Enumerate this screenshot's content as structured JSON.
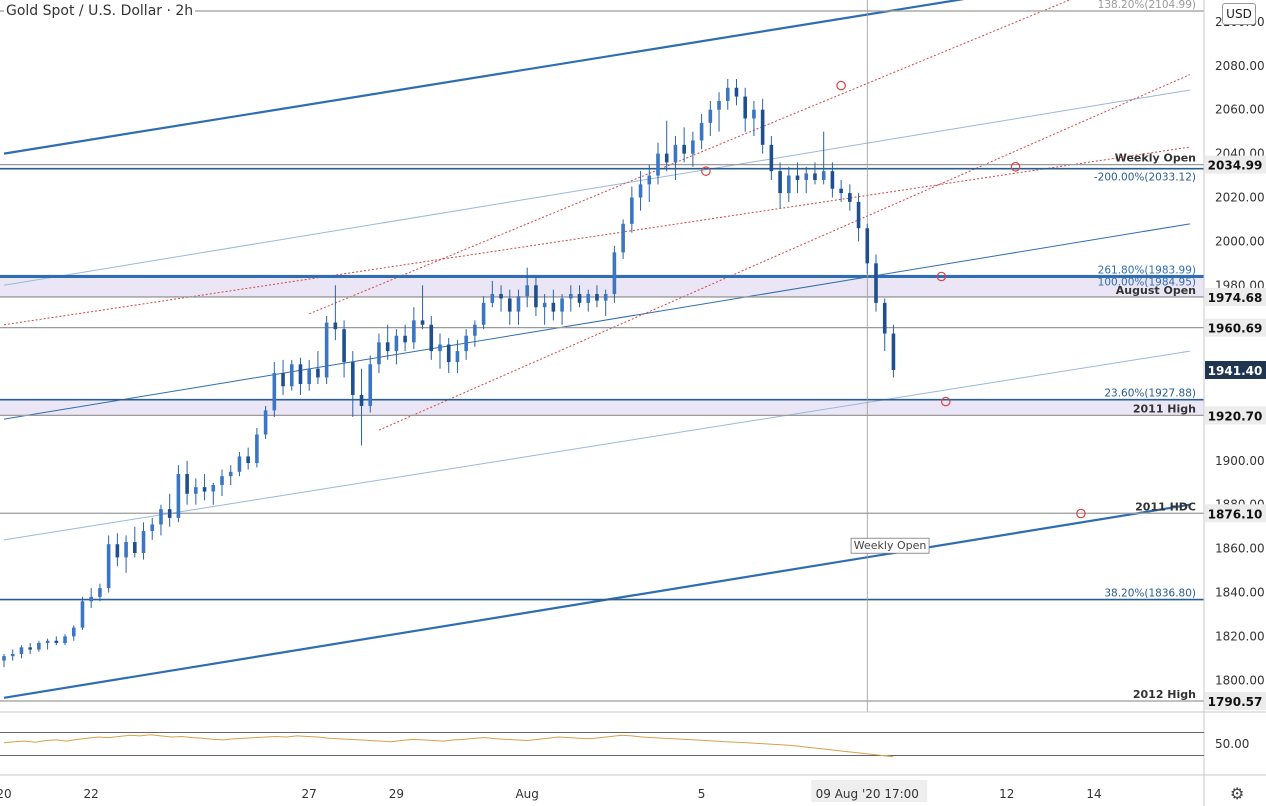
{
  "header": {
    "title": "Gold Spot / U.S. Dollar",
    "interval": "2h"
  },
  "currency_button": "USD",
  "settings_icon": "gear-icon",
  "colors": {
    "candle": "#2962a8",
    "channel": "#2f6db2",
    "light_channel": "#9ab8dc",
    "dotted": "#d64545",
    "level": "#2a5d8f",
    "grey_level": "#9a9a9a",
    "zone": "#e4def2",
    "rsi": "#d9a04a"
  },
  "chart_data": {
    "type": "candlestick",
    "symbol": "Gold Spot / U.S. Dollar",
    "interval": "2h",
    "currency": "USD",
    "ylim": [
      1786,
      2110
    ],
    "price_ticks": [
      1800,
      1820,
      1840,
      1860,
      1880,
      1900,
      1920,
      1940,
      1960,
      1980,
      2000,
      2020,
      2040,
      2060,
      2080,
      2100
    ],
    "x_ticks": [
      {
        "label": "20",
        "t": 0
      },
      {
        "label": "22",
        "t": 2
      },
      {
        "label": "27",
        "t": 7
      },
      {
        "label": "29",
        "t": 9
      },
      {
        "label": "Aug",
        "t": 12
      },
      {
        "label": "5",
        "t": 16
      },
      {
        "label": "09 Aug '20   17:00",
        "t": 19.8
      },
      {
        "label": "12",
        "t": 23
      },
      {
        "label": "14",
        "t": 25
      }
    ],
    "price_badges": [
      {
        "label": "2034.99",
        "value": 2034.99,
        "style": "grey"
      },
      {
        "label": "1974.68",
        "value": 1974.68,
        "style": "grey"
      },
      {
        "label": "1960.69",
        "value": 1960.69,
        "style": "grey"
      },
      {
        "label": "1941.40",
        "value": 1941.4,
        "style": "dark"
      },
      {
        "label": "1920.70",
        "value": 1920.7,
        "style": "grey"
      },
      {
        "label": "1876.10",
        "value": 1876.1,
        "style": "grey"
      },
      {
        "label": "1790.57",
        "value": 1790.57,
        "style": "grey"
      }
    ],
    "levels": [
      {
        "label": "138.20%(2104.99)",
        "value": 2104.99,
        "color": "grey"
      },
      {
        "label": "Weekly Open",
        "value": 2034.99,
        "color": "grey",
        "bold": true
      },
      {
        "label": "-200.00%(2033.12)",
        "value": 2033.12,
        "color": "teal"
      },
      {
        "label": "261.80%(1983.99)",
        "value": 1983.99,
        "color": "blue"
      },
      {
        "label": "100.00%(1984.95)",
        "value": 1984.95,
        "color": "blue"
      },
      {
        "label": "August Open",
        "value": 1974.68,
        "color": "grey",
        "bold": true
      },
      {
        "label": "",
        "value": 1960.69,
        "color": "grey"
      },
      {
        "label": "23.60%(1927.88)",
        "value": 1927.88,
        "color": "teal"
      },
      {
        "label": "2011 High",
        "value": 1920.7,
        "color": "grey",
        "bold": true
      },
      {
        "label": "2011 HDC",
        "value": 1876.1,
        "color": "grey",
        "bold": true
      },
      {
        "label": "38.20%(1836.80)",
        "value": 1836.8,
        "color": "teal"
      },
      {
        "label": "2012 High",
        "value": 1790.57,
        "color": "grey",
        "bold": true
      }
    ],
    "zones": [
      {
        "from": 1974.68,
        "to": 1984.95
      },
      {
        "from": 1920.7,
        "to": 1927.88
      }
    ],
    "trendlines": [
      {
        "kind": "channel",
        "from": {
          "t": 0,
          "p": 2040
        },
        "to": {
          "t": 22.5,
          "p": 2112
        }
      },
      {
        "kind": "channel",
        "from": {
          "t": 0,
          "p": 1792
        },
        "to": {
          "t": 27.2,
          "p": 1880
        }
      },
      {
        "kind": "mid",
        "from": {
          "t": 0,
          "p": 1919
        },
        "to": {
          "t": 27.2,
          "p": 2008
        }
      },
      {
        "kind": "light",
        "from": {
          "t": 0,
          "p": 1980
        },
        "to": {
          "t": 27.2,
          "p": 2069
        }
      },
      {
        "kind": "light",
        "from": {
          "t": 0,
          "p": 1864
        },
        "to": {
          "t": 27.2,
          "p": 1950
        }
      },
      {
        "kind": "dotted",
        "from": {
          "t": 0,
          "p": 1962
        },
        "to": {
          "t": 27.2,
          "p": 2043
        }
      },
      {
        "kind": "dotted",
        "from": {
          "t": 7,
          "p": 1967
        },
        "to": {
          "t": 24.8,
          "p": 2113
        }
      },
      {
        "kind": "dotted",
        "from": {
          "t": 8.6,
          "p": 1914
        },
        "to": {
          "t": 27.2,
          "p": 2076
        }
      }
    ],
    "markers": [
      {
        "t": 16.1,
        "p": 2032
      },
      {
        "t": 19.2,
        "p": 2071
      },
      {
        "t": 23.2,
        "p": 2034
      },
      {
        "t": 21.5,
        "p": 1984
      },
      {
        "t": 21.6,
        "p": 1927
      },
      {
        "t": 24.7,
        "p": 1876
      }
    ],
    "vertical_line_t": 19.8,
    "annotation": {
      "text": "Weekly Open",
      "t": 20.3,
      "p": 1862
    },
    "candles": [
      [
        0.0,
        1809,
        1812,
        1806,
        1811
      ],
      [
        0.2,
        1811,
        1814,
        1809,
        1812
      ],
      [
        0.4,
        1812,
        1816,
        1810,
        1815
      ],
      [
        0.6,
        1815,
        1817,
        1812,
        1814
      ],
      [
        0.8,
        1814,
        1818,
        1813,
        1817
      ],
      [
        1.0,
        1817,
        1819,
        1814,
        1818
      ],
      [
        1.2,
        1818,
        1820,
        1816,
        1817
      ],
      [
        1.4,
        1817,
        1821,
        1816,
        1820
      ],
      [
        1.6,
        1820,
        1825,
        1818,
        1824
      ],
      [
        1.8,
        1824,
        1838,
        1823,
        1836
      ],
      [
        2.0,
        1836,
        1842,
        1833,
        1838
      ],
      [
        2.2,
        1838,
        1844,
        1836,
        1842
      ],
      [
        2.4,
        1842,
        1866,
        1840,
        1862
      ],
      [
        2.6,
        1862,
        1867,
        1852,
        1856
      ],
      [
        2.8,
        1856,
        1866,
        1849,
        1863
      ],
      [
        3.0,
        1863,
        1870,
        1856,
        1858
      ],
      [
        3.2,
        1858,
        1872,
        1855,
        1868
      ],
      [
        3.4,
        1868,
        1874,
        1864,
        1871
      ],
      [
        3.6,
        1871,
        1880,
        1866,
        1878
      ],
      [
        3.8,
        1878,
        1885,
        1870,
        1874
      ],
      [
        4.0,
        1874,
        1898,
        1872,
        1894
      ],
      [
        4.2,
        1894,
        1900,
        1880,
        1885
      ],
      [
        4.4,
        1885,
        1892,
        1880,
        1888
      ],
      [
        4.6,
        1888,
        1894,
        1882,
        1886
      ],
      [
        4.8,
        1886,
        1890,
        1880,
        1889
      ],
      [
        5.0,
        1889,
        1896,
        1884,
        1893
      ],
      [
        5.2,
        1893,
        1898,
        1889,
        1895
      ],
      [
        5.4,
        1895,
        1904,
        1893,
        1902
      ],
      [
        5.6,
        1902,
        1906,
        1896,
        1899
      ],
      [
        5.8,
        1899,
        1915,
        1897,
        1912
      ],
      [
        6.0,
        1912,
        1925,
        1910,
        1923
      ],
      [
        6.2,
        1923,
        1945,
        1920,
        1940
      ],
      [
        6.4,
        1940,
        1946,
        1930,
        1934
      ],
      [
        6.6,
        1934,
        1946,
        1932,
        1944
      ],
      [
        6.8,
        1944,
        1947,
        1930,
        1935
      ],
      [
        7.0,
        1935,
        1946,
        1932,
        1942
      ],
      [
        7.2,
        1942,
        1950,
        1935,
        1938
      ],
      [
        7.4,
        1938,
        1966,
        1935,
        1963
      ],
      [
        7.6,
        1963,
        1980,
        1955,
        1960
      ],
      [
        7.8,
        1960,
        1964,
        1938,
        1945
      ],
      [
        8.0,
        1945,
        1950,
        1920,
        1930
      ],
      [
        8.2,
        1930,
        1942,
        1907,
        1925
      ],
      [
        8.4,
        1925,
        1948,
        1922,
        1944
      ],
      [
        8.6,
        1944,
        1958,
        1940,
        1954
      ],
      [
        8.8,
        1954,
        1962,
        1946,
        1950
      ],
      [
        9.0,
        1950,
        1960,
        1944,
        1957
      ],
      [
        9.2,
        1957,
        1962,
        1950,
        1954
      ],
      [
        9.4,
        1954,
        1970,
        1951,
        1964
      ],
      [
        9.6,
        1964,
        1980,
        1960,
        1962
      ],
      [
        9.8,
        1962,
        1966,
        1946,
        1950
      ],
      [
        10.0,
        1950,
        1958,
        1942,
        1953
      ],
      [
        10.2,
        1953,
        1956,
        1940,
        1945
      ],
      [
        10.4,
        1945,
        1955,
        1940,
        1950
      ],
      [
        10.6,
        1950,
        1960,
        1946,
        1957
      ],
      [
        10.8,
        1957,
        1964,
        1952,
        1962
      ],
      [
        11.0,
        1962,
        1975,
        1960,
        1972
      ],
      [
        11.2,
        1972,
        1982,
        1970,
        1976
      ],
      [
        11.4,
        1976,
        1980,
        1968,
        1974
      ],
      [
        11.6,
        1974,
        1978,
        1962,
        1968
      ],
      [
        11.8,
        1968,
        1978,
        1962,
        1975
      ],
      [
        12.0,
        1975,
        1988,
        1970,
        1980
      ],
      [
        12.2,
        1980,
        1984,
        1966,
        1970
      ],
      [
        12.4,
        1970,
        1976,
        1962,
        1972
      ],
      [
        12.6,
        1972,
        1978,
        1964,
        1968
      ],
      [
        12.8,
        1968,
        1976,
        1962,
        1974
      ],
      [
        13.0,
        1974,
        1980,
        1968,
        1976
      ],
      [
        13.2,
        1976,
        1980,
        1970,
        1972
      ],
      [
        13.4,
        1972,
        1978,
        1968,
        1976
      ],
      [
        13.6,
        1976,
        1980,
        1970,
        1973
      ],
      [
        13.8,
        1973,
        1978,
        1966,
        1976
      ],
      [
        14.0,
        1976,
        1998,
        1972,
        1995
      ],
      [
        14.2,
        1995,
        2010,
        1992,
        2008
      ],
      [
        14.4,
        2008,
        2025,
        2004,
        2020
      ],
      [
        14.6,
        2020,
        2032,
        2014,
        2026
      ],
      [
        14.8,
        2026,
        2035,
        2018,
        2030
      ],
      [
        15.0,
        2030,
        2045,
        2026,
        2040
      ],
      [
        15.2,
        2040,
        2055,
        2032,
        2036
      ],
      [
        15.4,
        2036,
        2048,
        2028,
        2044
      ],
      [
        15.6,
        2044,
        2052,
        2036,
        2040
      ],
      [
        15.8,
        2040,
        2050,
        2034,
        2046
      ],
      [
        16.0,
        2046,
        2058,
        2042,
        2054
      ],
      [
        16.2,
        2054,
        2064,
        2048,
        2060
      ],
      [
        16.4,
        2060,
        2068,
        2050,
        2064
      ],
      [
        16.6,
        2064,
        2074,
        2060,
        2070
      ],
      [
        16.8,
        2070,
        2074,
        2062,
        2066
      ],
      [
        17.0,
        2066,
        2070,
        2050,
        2056
      ],
      [
        17.2,
        2056,
        2064,
        2048,
        2060
      ],
      [
        17.4,
        2060,
        2065,
        2040,
        2044
      ],
      [
        17.6,
        2044,
        2048,
        2028,
        2032
      ],
      [
        17.8,
        2032,
        2036,
        2015,
        2022
      ],
      [
        18.0,
        2022,
        2034,
        2018,
        2030
      ],
      [
        18.2,
        2030,
        2036,
        2022,
        2028
      ],
      [
        18.4,
        2028,
        2034,
        2022,
        2031
      ],
      [
        18.6,
        2031,
        2036,
        2026,
        2028
      ],
      [
        18.8,
        2028,
        2050,
        2026,
        2032
      ],
      [
        19.0,
        2032,
        2036,
        2020,
        2024
      ],
      [
        19.2,
        2024,
        2028,
        2018,
        2022
      ],
      [
        19.4,
        2022,
        2026,
        2014,
        2018
      ],
      [
        19.6,
        2018,
        2022,
        2000,
        2006
      ],
      [
        19.8,
        2006,
        2008,
        1985,
        1990
      ],
      [
        20.0,
        1990,
        1994,
        1968,
        1972
      ],
      [
        20.2,
        1972,
        1974,
        1950,
        1958
      ],
      [
        20.4,
        1958,
        1962,
        1938,
        1941.4
      ]
    ]
  },
  "rsi": {
    "levels": [
      70,
      30
    ],
    "tick": "50.00",
    "values": [
      52,
      54,
      55,
      53,
      56,
      57,
      55,
      58,
      60,
      62,
      61,
      63,
      65,
      64,
      66,
      64,
      62,
      63,
      61,
      60,
      58,
      57,
      59,
      60,
      61,
      62,
      63,
      62,
      64,
      63,
      62,
      60,
      59,
      58,
      57,
      56,
      55,
      54,
      56,
      58,
      57,
      56,
      55,
      57,
      58,
      60,
      61,
      59,
      58,
      57,
      56,
      58,
      60,
      62,
      61,
      60,
      59,
      61,
      63,
      65,
      64,
      62,
      61,
      60,
      59,
      58,
      57,
      56,
      55,
      54,
      53,
      52,
      51,
      50,
      49,
      48,
      46,
      44,
      42,
      40,
      38,
      36,
      34,
      32,
      30,
      28
    ]
  }
}
